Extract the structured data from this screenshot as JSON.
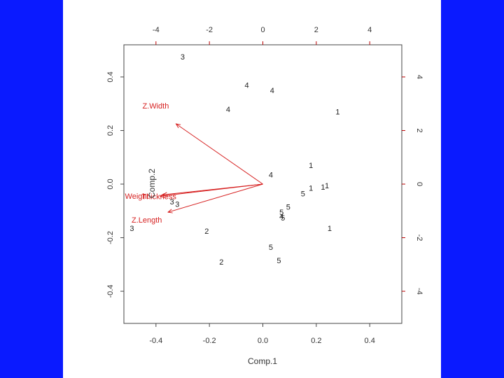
{
  "chart_data": {
    "type": "scatter",
    "xlabel": "Comp.1",
    "ylabel": "Comp.2",
    "xlim": [
      -0.52,
      0.52
    ],
    "ylim": [
      -0.52,
      0.52
    ],
    "x_ticks": [
      "-0.4",
      "-0.2",
      "0.0",
      "0.2",
      "0.4"
    ],
    "y_ticks": [
      "-0.4",
      "-0.2",
      "0.0",
      "0.2",
      "0.4"
    ],
    "top_ticks": [
      "-4",
      "-2",
      "0",
      "2",
      "4"
    ],
    "right_ticks": [
      "-4",
      "-2",
      "0",
      "2",
      "4"
    ],
    "points": [
      {
        "x": -0.3,
        "y": 0.475,
        "label": "3"
      },
      {
        "x": -0.06,
        "y": 0.37,
        "label": "4"
      },
      {
        "x": 0.035,
        "y": 0.35,
        "label": "4"
      },
      {
        "x": -0.13,
        "y": 0.28,
        "label": "4"
      },
      {
        "x": 0.28,
        "y": 0.27,
        "label": "1"
      },
      {
        "x": 0.18,
        "y": 0.07,
        "label": "1"
      },
      {
        "x": 0.03,
        "y": 0.035,
        "label": "4"
      },
      {
        "x": 0.24,
        "y": -0.005,
        "label": "1"
      },
      {
        "x": 0.225,
        "y": -0.01,
        "label": "1"
      },
      {
        "x": 0.18,
        "y": -0.015,
        "label": "1"
      },
      {
        "x": 0.15,
        "y": -0.035,
        "label": "5"
      },
      {
        "x": -0.34,
        "y": -0.065,
        "label": "3"
      },
      {
        "x": -0.32,
        "y": -0.075,
        "label": "3"
      },
      {
        "x": 0.095,
        "y": -0.085,
        "label": "5"
      },
      {
        "x": 0.07,
        "y": -0.105,
        "label": "5"
      },
      {
        "x": 0.07,
        "y": -0.12,
        "label": "4"
      },
      {
        "x": 0.075,
        "y": -0.125,
        "label": "5"
      },
      {
        "x": -0.49,
        "y": -0.165,
        "label": "3"
      },
      {
        "x": 0.25,
        "y": -0.165,
        "label": "1"
      },
      {
        "x": -0.21,
        "y": -0.175,
        "label": "2"
      },
      {
        "x": 0.03,
        "y": -0.235,
        "label": "5"
      },
      {
        "x": 0.06,
        "y": -0.285,
        "label": "5"
      },
      {
        "x": -0.155,
        "y": -0.29,
        "label": "2"
      }
    ],
    "loadings": [
      {
        "name": "Z.Width",
        "x": -0.325,
        "y": 0.225
      },
      {
        "name": "Weight",
        "x": -0.385,
        "y": -0.045
      },
      {
        "name": "Thickness",
        "x": -0.375,
        "y": -0.04
      },
      {
        "name": "Z.Length",
        "x": -0.355,
        "y": -0.105
      }
    ],
    "colors": {
      "points": "#222222",
      "loadings": "#d62020",
      "secondary_axis": "#b00000",
      "background_side": "#0a1aff"
    }
  }
}
